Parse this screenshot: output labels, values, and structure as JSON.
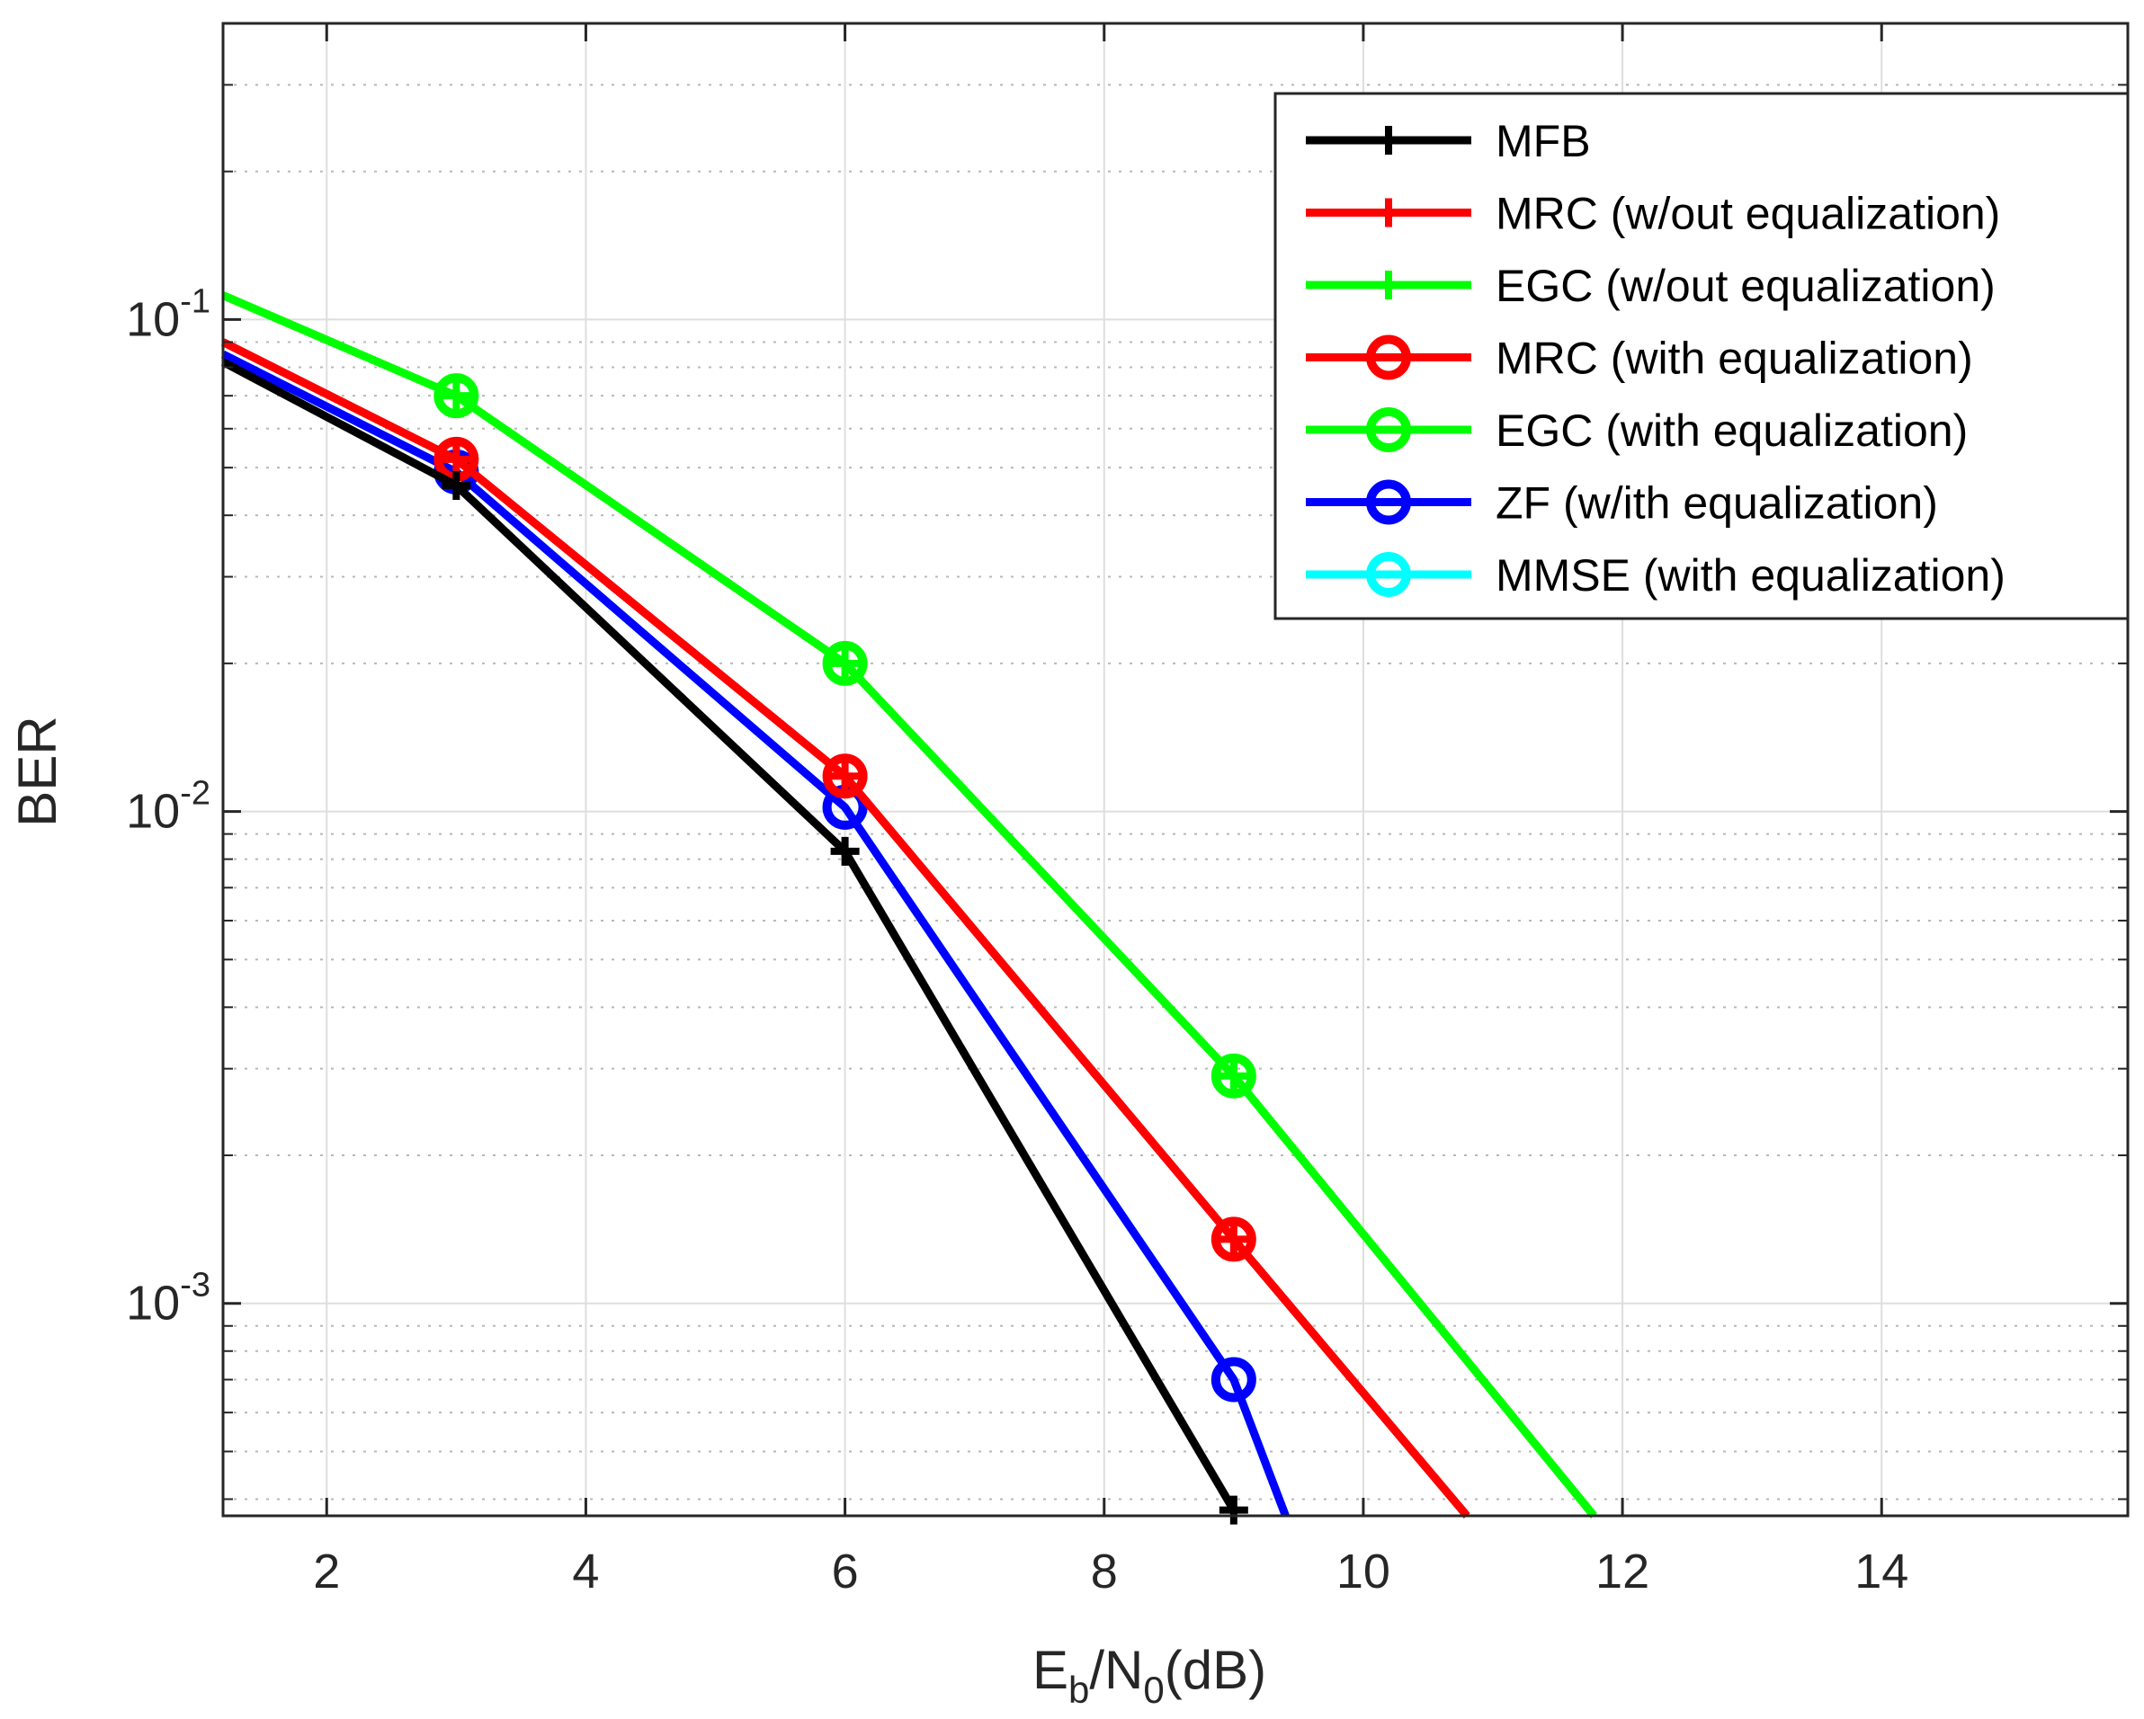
{
  "chart_data": {
    "type": "line",
    "title": "",
    "xlabel": "E_b/N_0(dB)",
    "xlabel_parts": {
      "main1": "E",
      "sub1": "b",
      "slash": "/N",
      "sub2": "0",
      "tail": "(dB)"
    },
    "ylabel": "BER",
    "xlim": [
      1.2,
      15.9
    ],
    "ylim": [
      0.00037,
      0.4
    ],
    "yscale": "log",
    "grid": true,
    "xticks": [
      2,
      4,
      6,
      8,
      10,
      12,
      14
    ],
    "xtick_labels": [
      "2",
      "4",
      "6",
      "8",
      "10",
      "12",
      "14"
    ],
    "yticks": [
      {
        "value": 0.1,
        "base": "10",
        "exp": "-1"
      },
      {
        "value": 0.01,
        "base": "10",
        "exp": "-2"
      },
      {
        "value": 0.001,
        "base": "10",
        "exp": "-3"
      }
    ],
    "legend_location": "top-right",
    "series": [
      {
        "name": "MFB",
        "color": "#000000",
        "marker": "plus",
        "x": [
          1.2,
          3,
          6,
          9
        ],
        "y": [
          0.082,
          0.046,
          0.0083,
          0.00038
        ]
      },
      {
        "name": "MRC (w/out equalization)",
        "color": "#ff0000",
        "marker": "plus",
        "x": [
          1.2,
          3,
          6,
          9,
          10.8
        ],
        "y": [
          0.09,
          0.052,
          0.0118,
          0.00135,
          0.00037
        ]
      },
      {
        "name": "EGC (w/out equalization)",
        "color": "#00ff00",
        "marker": "plus",
        "x": [
          1.2,
          3,
          6,
          9,
          11.78
        ],
        "y": [
          0.112,
          0.07,
          0.02,
          0.0029,
          0.00037
        ]
      },
      {
        "name": "MRC (with equalization)",
        "color": "#ff0000",
        "marker": "circle",
        "x": [
          1.2,
          3,
          6,
          9,
          10.8
        ],
        "y": [
          0.09,
          0.052,
          0.0118,
          0.00135,
          0.00037
        ]
      },
      {
        "name": "EGC (with equalization)",
        "color": "#00ff00",
        "marker": "circle",
        "x": [
          1.2,
          3,
          6,
          9,
          11.78
        ],
        "y": [
          0.112,
          0.07,
          0.02,
          0.0029,
          0.00037
        ]
      },
      {
        "name": "ZF (w/ith equalization)",
        "color": "#0000ff",
        "marker": "circle",
        "x": [
          1.2,
          3,
          6,
          9,
          9.4
        ],
        "y": [
          0.085,
          0.049,
          0.0102,
          0.0007,
          0.00037
        ]
      },
      {
        "name": "MMSE (with equalization)",
        "color": "#00ffff",
        "marker": "circle",
        "x": [
          1.2,
          3,
          6,
          9,
          9.4
        ],
        "y": [
          0.085,
          0.049,
          0.0102,
          0.0007,
          0.00037
        ]
      }
    ]
  }
}
